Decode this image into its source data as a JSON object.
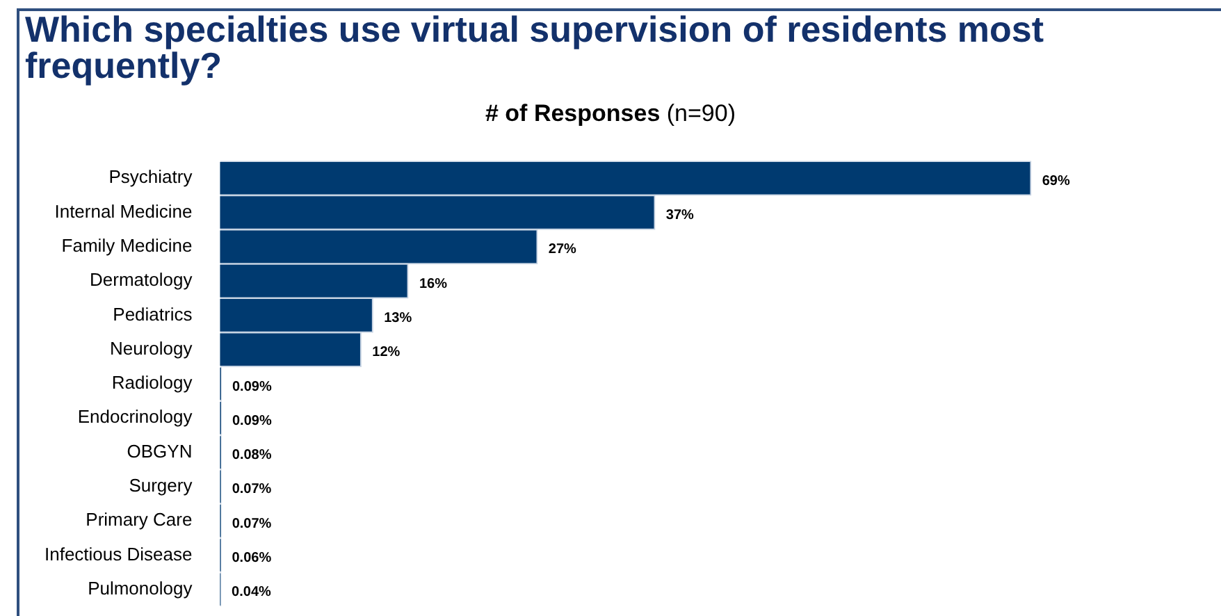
{
  "chart_data": {
    "type": "bar",
    "orientation": "horizontal",
    "title": "Which specialties use virtual supervision of residents most frequently?",
    "subtitle": "# of Responses (n=90)",
    "categories": [
      "Psychiatry",
      "Internal Medicine",
      "Family Medicine",
      "Dermatology",
      "Pediatrics",
      "Neurology",
      "Radiology",
      "Endocrinology",
      "OBGYN",
      "Surgery",
      "Primary Care",
      "Infectious Disease",
      "Pulmonology"
    ],
    "values": [
      69,
      37,
      27,
      16,
      13,
      12,
      0.09,
      0.09,
      0.08,
      0.07,
      0.07,
      0.06,
      0.04
    ],
    "value_labels": [
      "69%",
      "37%",
      "27%",
      "16%",
      "13%",
      "12%",
      "0.09%",
      "0.09%",
      "0.08%",
      "0.07%",
      "0.07%",
      "0.06%",
      "0.04%"
    ],
    "color": "#003a70",
    "legend": false
  }
}
